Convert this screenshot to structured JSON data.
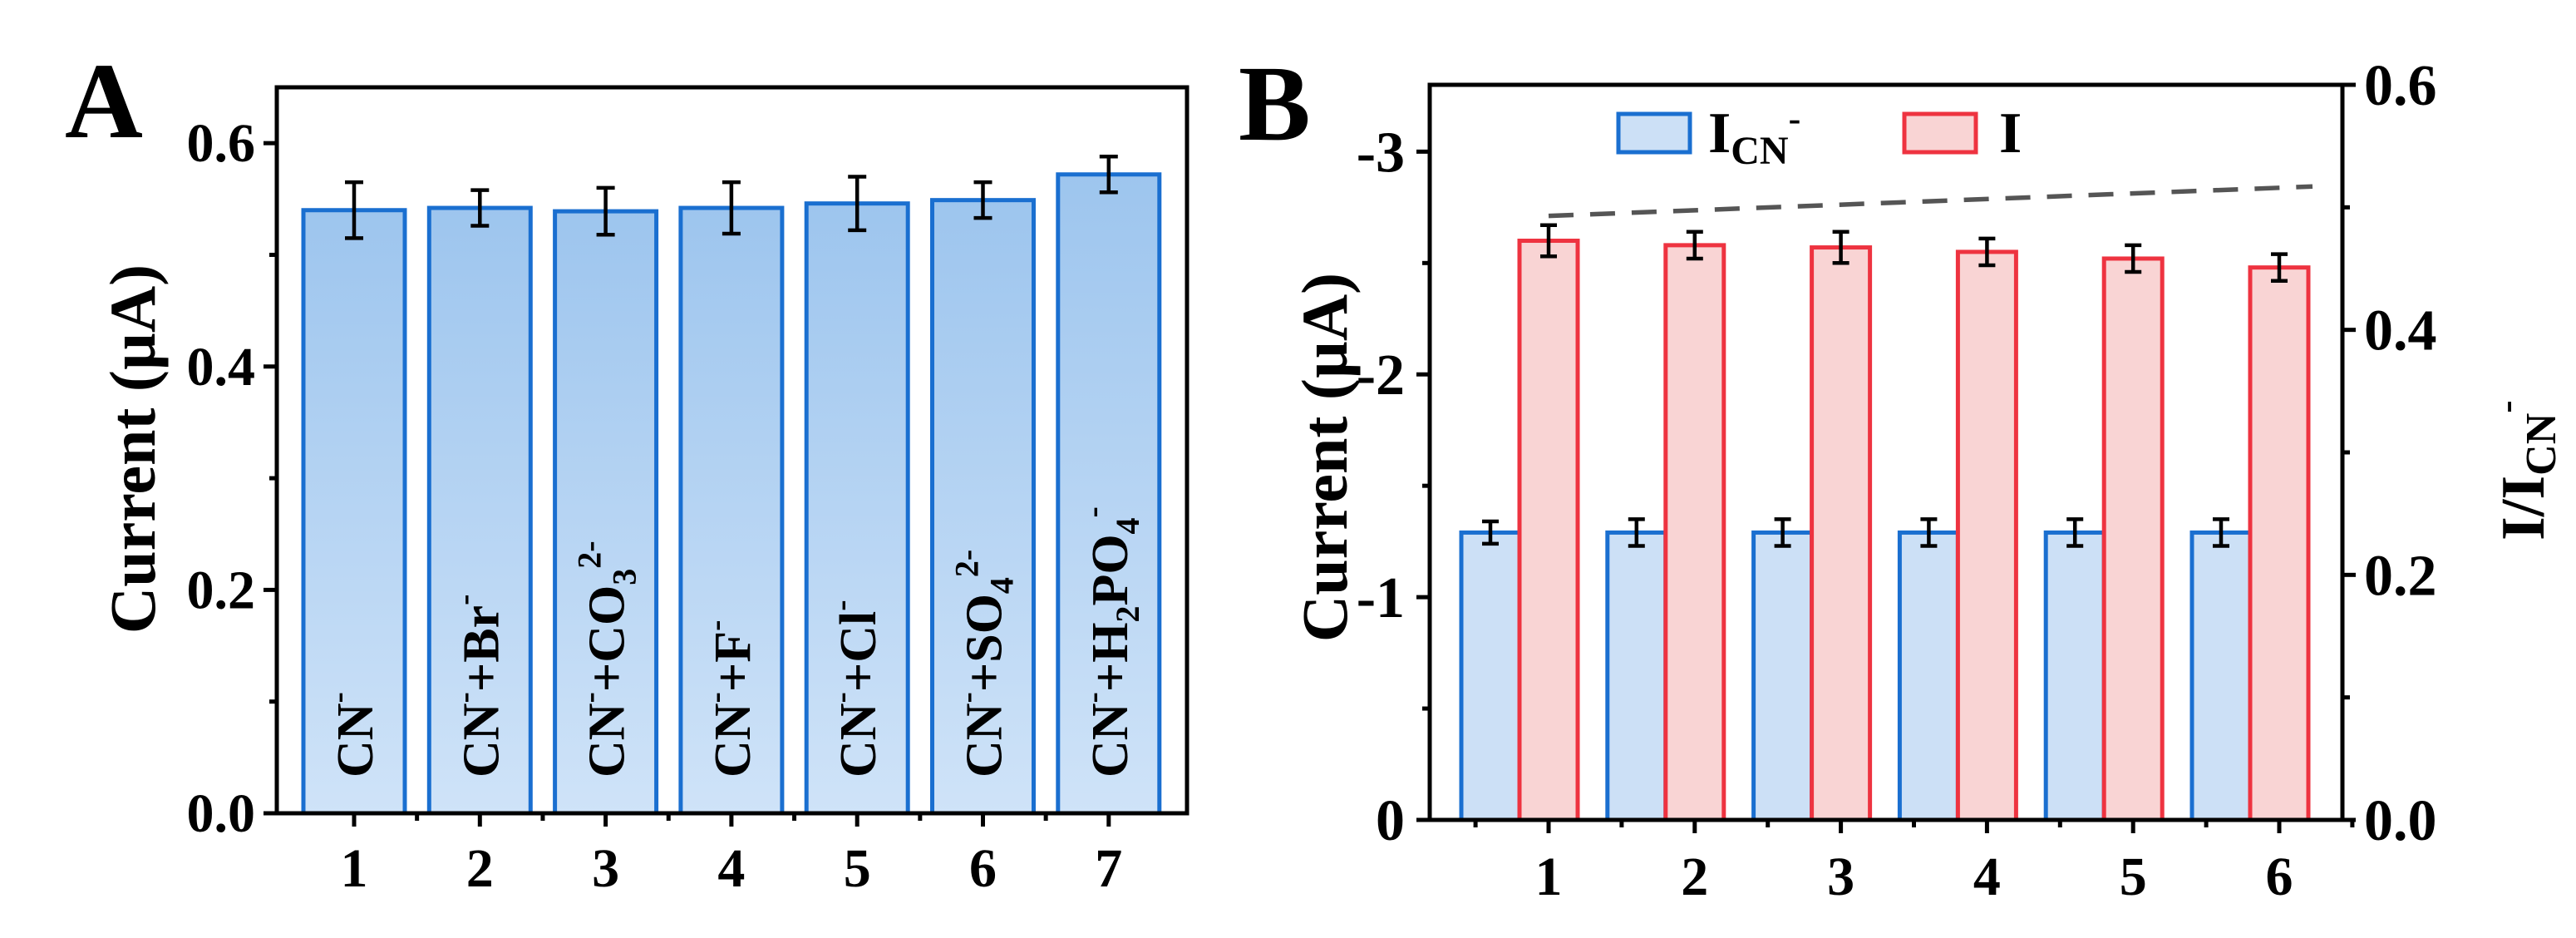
{
  "colors": {
    "blue_stroke": "#1a6fd0",
    "blue_fill_top": "#9dc5ee",
    "blue_fill_bottom": "#cfe3f8",
    "blue_light_fill": "#cce0f6",
    "red_stroke": "#ee3340",
    "red_fill": "#f9d4d4",
    "trend": "#555555"
  },
  "chart_data": [
    {
      "panel_label": "A",
      "type": "bar",
      "categories": [
        "1",
        "2",
        "3",
        "4",
        "5",
        "6",
        "7"
      ],
      "values": [
        0.54,
        0.542,
        0.539,
        0.542,
        0.546,
        0.549,
        0.572
      ],
      "errors": [
        0.025,
        0.016,
        0.021,
        0.023,
        0.024,
        0.016,
        0.016
      ],
      "bar_labels": [
        {
          "base": "CN",
          "sup": "-"
        },
        {
          "base": "CN",
          "sup": "-",
          "rest": "+Br",
          "rest_sup": "-"
        },
        {
          "base": "CN",
          "sup": "-",
          "rest": "+CO",
          "rest_sub": "3",
          "rest_sup": "2-"
        },
        {
          "base": "CN",
          "sup": "-",
          "rest": "+F",
          "rest_sup": "-"
        },
        {
          "base": "CN",
          "sup": "-",
          "rest": "+Cl",
          "rest_sup": "-"
        },
        {
          "base": "CN",
          "sup": "-",
          "rest": "+SO",
          "rest_sub": "4",
          "rest_sup": "2-"
        },
        {
          "base": "CN",
          "sup": "-",
          "rest": "+H",
          "rest_sub": "2",
          "rest2": "PO",
          "rest2_sub": "4",
          "rest_sup": "-"
        }
      ],
      "ylabel": "Current (µA)",
      "ylim": [
        0,
        0.65
      ],
      "yticks": [
        {
          "value": 0.0,
          "label": "0.0"
        },
        {
          "value": 0.2,
          "label": "0.2"
        },
        {
          "value": 0.4,
          "label": "0.4"
        },
        {
          "value": 0.6,
          "label": "0.6"
        }
      ]
    },
    {
      "panel_label": "B",
      "type": "bar",
      "categories": [
        "1",
        "2",
        "3",
        "4",
        "5",
        "6"
      ],
      "series": [
        {
          "name": "I_CN-",
          "legend_main": "I",
          "legend_sub": "CN",
          "legend_sup": "-",
          "values": [
            -1.29,
            -1.29,
            -1.29,
            -1.29,
            -1.29,
            -1.29
          ],
          "errors": [
            0.05,
            0.06,
            0.06,
            0.06,
            0.06,
            0.06
          ],
          "axis": "left"
        },
        {
          "name": "I",
          "legend_main": "I",
          "values": [
            -2.6,
            -2.58,
            -2.57,
            -2.55,
            -2.52,
            -2.48
          ],
          "errors": [
            0.07,
            0.06,
            0.07,
            0.06,
            0.06,
            0.06
          ],
          "axis": "left"
        }
      ],
      "ratio_line": {
        "style": "dashed",
        "values": [
          0.493,
          0.498,
          0.502,
          0.506,
          0.512,
          0.517
        ]
      },
      "ylabel": "Current (µA)",
      "ylim": [
        0,
        -3.3
      ],
      "yticks": [
        {
          "value": 0,
          "label": "0"
        },
        {
          "value": -1,
          "label": "-1"
        },
        {
          "value": -2,
          "label": "-2"
        },
        {
          "value": -3,
          "label": "-3"
        }
      ],
      "y2label": {
        "main": "I/I",
        "sub": "CN",
        "sup": "-"
      },
      "y2lim": [
        0,
        0.6
      ],
      "y2ticks": [
        {
          "value": 0.0,
          "label": "0.0"
        },
        {
          "value": 0.2,
          "label": "0.2"
        },
        {
          "value": 0.4,
          "label": "0.4"
        },
        {
          "value": 0.6,
          "label": "0.6"
        }
      ]
    }
  ]
}
